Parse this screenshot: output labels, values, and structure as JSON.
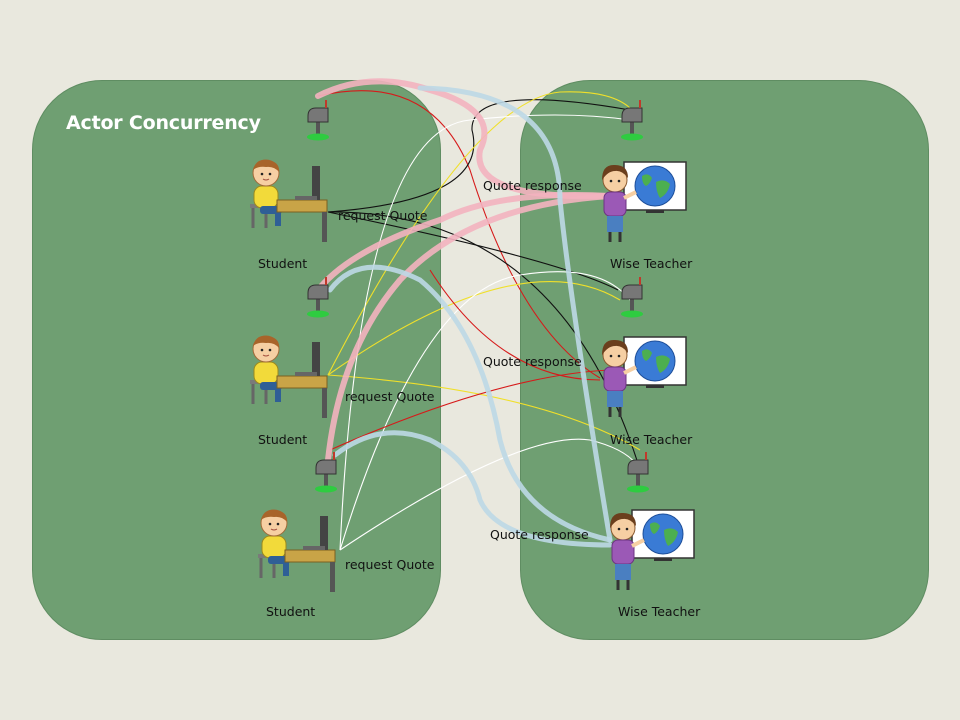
{
  "title": "Actor Concurrency",
  "students": [
    {
      "label": "Student"
    },
    {
      "label": "Student"
    },
    {
      "label": "Student"
    }
  ],
  "teachers": [
    {
      "label": "Wise Teacher"
    },
    {
      "label": "Wise Teacher"
    },
    {
      "label": "Wise Teacher"
    }
  ],
  "messages": {
    "request": [
      "request Quote",
      "request Quote",
      "request Quote"
    ],
    "response": [
      "Quote response",
      "Quote response",
      "Quote response"
    ]
  },
  "icons": {
    "student": "student-at-computer-icon",
    "teacher": "teacher-with-globe-icon",
    "mailbox": "mailbox-icon"
  },
  "colors": {
    "background": "#e9e8de",
    "panel": "#6f9f72",
    "pink_path": "#f3b3bf",
    "blue_path": "#bcd8e6"
  }
}
